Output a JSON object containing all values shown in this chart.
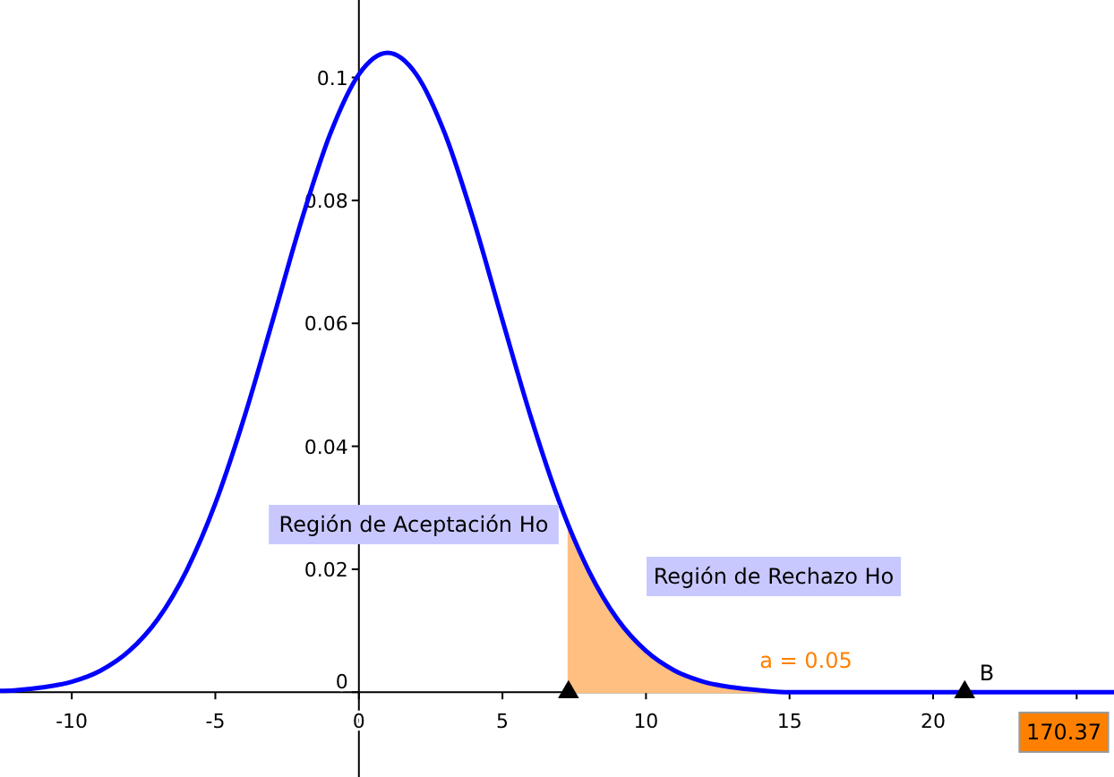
{
  "chart_data": {
    "type": "line",
    "xlim": [
      -12.5,
      26.3
    ],
    "ylim": [
      -0.0138,
      0.1126
    ],
    "xticks": [
      -10,
      -5,
      0,
      5,
      10,
      15,
      20,
      {
        "value": 25,
        "label": null
      }
    ],
    "yticks": [
      0,
      0.02,
      0.04,
      0.06,
      0.08,
      0.1
    ],
    "grid": false,
    "marker": "none",
    "line_style": "solid",
    "series": [
      {
        "type": "area",
        "color": "#ffbf80",
        "x": [
          7.3,
          8,
          9,
          10,
          11,
          12,
          13,
          14,
          15
        ],
        "values": [
          0.0271,
          0.0198,
          0.0119,
          0.0067,
          0.0035,
          0.0017,
          0.0008,
          0.0003,
          0
        ]
      },
      {
        "color": "#0000ff",
        "x": [
          -12.5,
          -12,
          -11,
          -10,
          -9,
          -8,
          -7,
          -6,
          -5,
          -4,
          -3,
          -2,
          -1,
          0,
          1,
          2,
          3,
          4,
          5,
          6,
          7,
          7.3,
          8,
          9,
          10,
          11,
          12,
          13,
          14,
          15,
          16,
          18,
          20,
          22,
          24,
          26.3
        ],
        "values": [
          0.0002,
          0.0003,
          0.0008,
          0.0017,
          0.0035,
          0.0067,
          0.0119,
          0.0198,
          0.0307,
          0.0446,
          0.0605,
          0.0767,
          0.0908,
          0.1005,
          0.104,
          0.1005,
          0.0908,
          0.0767,
          0.0605,
          0.0446,
          0.0307,
          0.0271,
          0.0198,
          0.0119,
          0.0067,
          0.0035,
          0.0017,
          0.0008,
          0.0003,
          0,
          0,
          0,
          0,
          0,
          0,
          0
        ]
      },
      {
        "type": "scatter",
        "color": "#000000",
        "marker": "triangle",
        "x": [
          7.3,
          21.1
        ],
        "values": [
          0,
          0
        ]
      }
    ],
    "annotations": [
      "Región de Aceptación Ho",
      "Región de Rechazo Ho",
      "a = 0.05",
      "B",
      "170.37"
    ]
  }
}
